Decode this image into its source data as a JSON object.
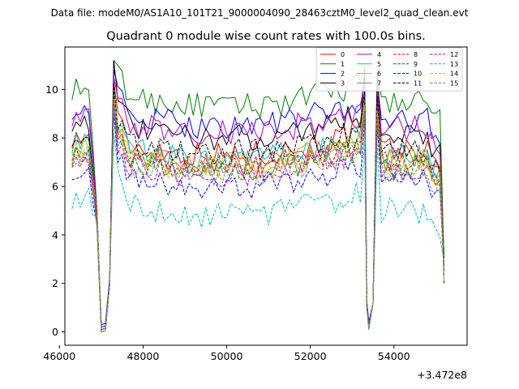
{
  "chart_data": {
    "type": "line",
    "suptitle": "Data file: modeM0/AS1A10_101T21_9000004090_28463cztM0_level2_quad_clean.evt",
    "title": "Quadrant 0 module wise count rates with 100.0s bins.",
    "xlabel": "",
    "ylabel": "",
    "x_offset_label": "+3.472e8",
    "xlim": [
      46130,
      55750
    ],
    "ylim": [
      -0.55,
      11.75
    ],
    "xticks": [
      46000,
      48000,
      50000,
      52000,
      54000
    ],
    "xtick_labels": [
      "46000",
      "48000",
      "50000",
      "52000",
      "54000"
    ],
    "yticks": [
      0,
      2,
      4,
      6,
      8,
      10
    ],
    "ytick_labels": [
      "0",
      "2",
      "4",
      "6",
      "8",
      "10"
    ],
    "legend_position": "top-right",
    "x_segments": [
      [
        46300,
        46900
      ],
      [
        47050,
        47200
      ],
      [
        47300,
        53200
      ],
      [
        53250,
        53500
      ],
      [
        53600,
        55200
      ]
    ],
    "series": [
      {
        "name": "0",
        "color": "#ff0000",
        "dash": "solid",
        "base": 7.8,
        "peak": 10.3,
        "valley": 0.1
      },
      {
        "name": "1",
        "color": "#008000",
        "dash": "solid",
        "base": 9.8,
        "peak": 11.2,
        "valley": 0.2
      },
      {
        "name": "2",
        "color": "#0000ff",
        "dash": "solid",
        "base": 9.0,
        "peak": 10.8,
        "valley": 0.3
      },
      {
        "name": "3",
        "color": "#000000",
        "dash": "solid",
        "base": 8.5,
        "peak": 11.2,
        "valley": 0.1
      },
      {
        "name": "4",
        "color": "#bf00bf",
        "dash": "solid",
        "base": 8.7,
        "peak": 10.5,
        "valley": 0.2
      },
      {
        "name": "5",
        "color": "#00bfbf",
        "dash": "solid",
        "base": 7.6,
        "peak": 10.0,
        "valley": 0.1
      },
      {
        "name": "6",
        "color": "#bfbf00",
        "dash": "solid",
        "base": 7.4,
        "peak": 9.8,
        "valley": 0.1
      },
      {
        "name": "7",
        "color": "#808080",
        "dash": "solid",
        "base": 7.5,
        "peak": 9.9,
        "valley": 0.1
      },
      {
        "name": "8",
        "color": "#ff0000",
        "dash": "dashed",
        "base": 7.3,
        "peak": 9.6,
        "valley": 0.0
      },
      {
        "name": "9",
        "color": "#008000",
        "dash": "dashed",
        "base": 7.1,
        "peak": 9.4,
        "valley": 0.0
      },
      {
        "name": "10",
        "color": "#0000ff",
        "dash": "dashed",
        "base": 6.5,
        "peak": 9.0,
        "valley": 0.1
      },
      {
        "name": "11",
        "color": "#000000",
        "dash": "dashed",
        "base": 7.9,
        "peak": 10.2,
        "valley": 0.1
      },
      {
        "name": "12",
        "color": "#bf00bf",
        "dash": "dashed",
        "base": 7.0,
        "peak": 9.5,
        "valley": 0.0
      },
      {
        "name": "13",
        "color": "#00bfbf",
        "dash": "dashed",
        "base": 5.3,
        "peak": 8.2,
        "valley": 0.1
      },
      {
        "name": "14",
        "color": "#bfbf00",
        "dash": "dashed",
        "base": 7.2,
        "peak": 9.6,
        "valley": 0.0
      },
      {
        "name": "15",
        "color": "#808080",
        "dash": "dashed",
        "base": 7.0,
        "peak": 9.3,
        "valley": 0.0
      }
    ]
  }
}
